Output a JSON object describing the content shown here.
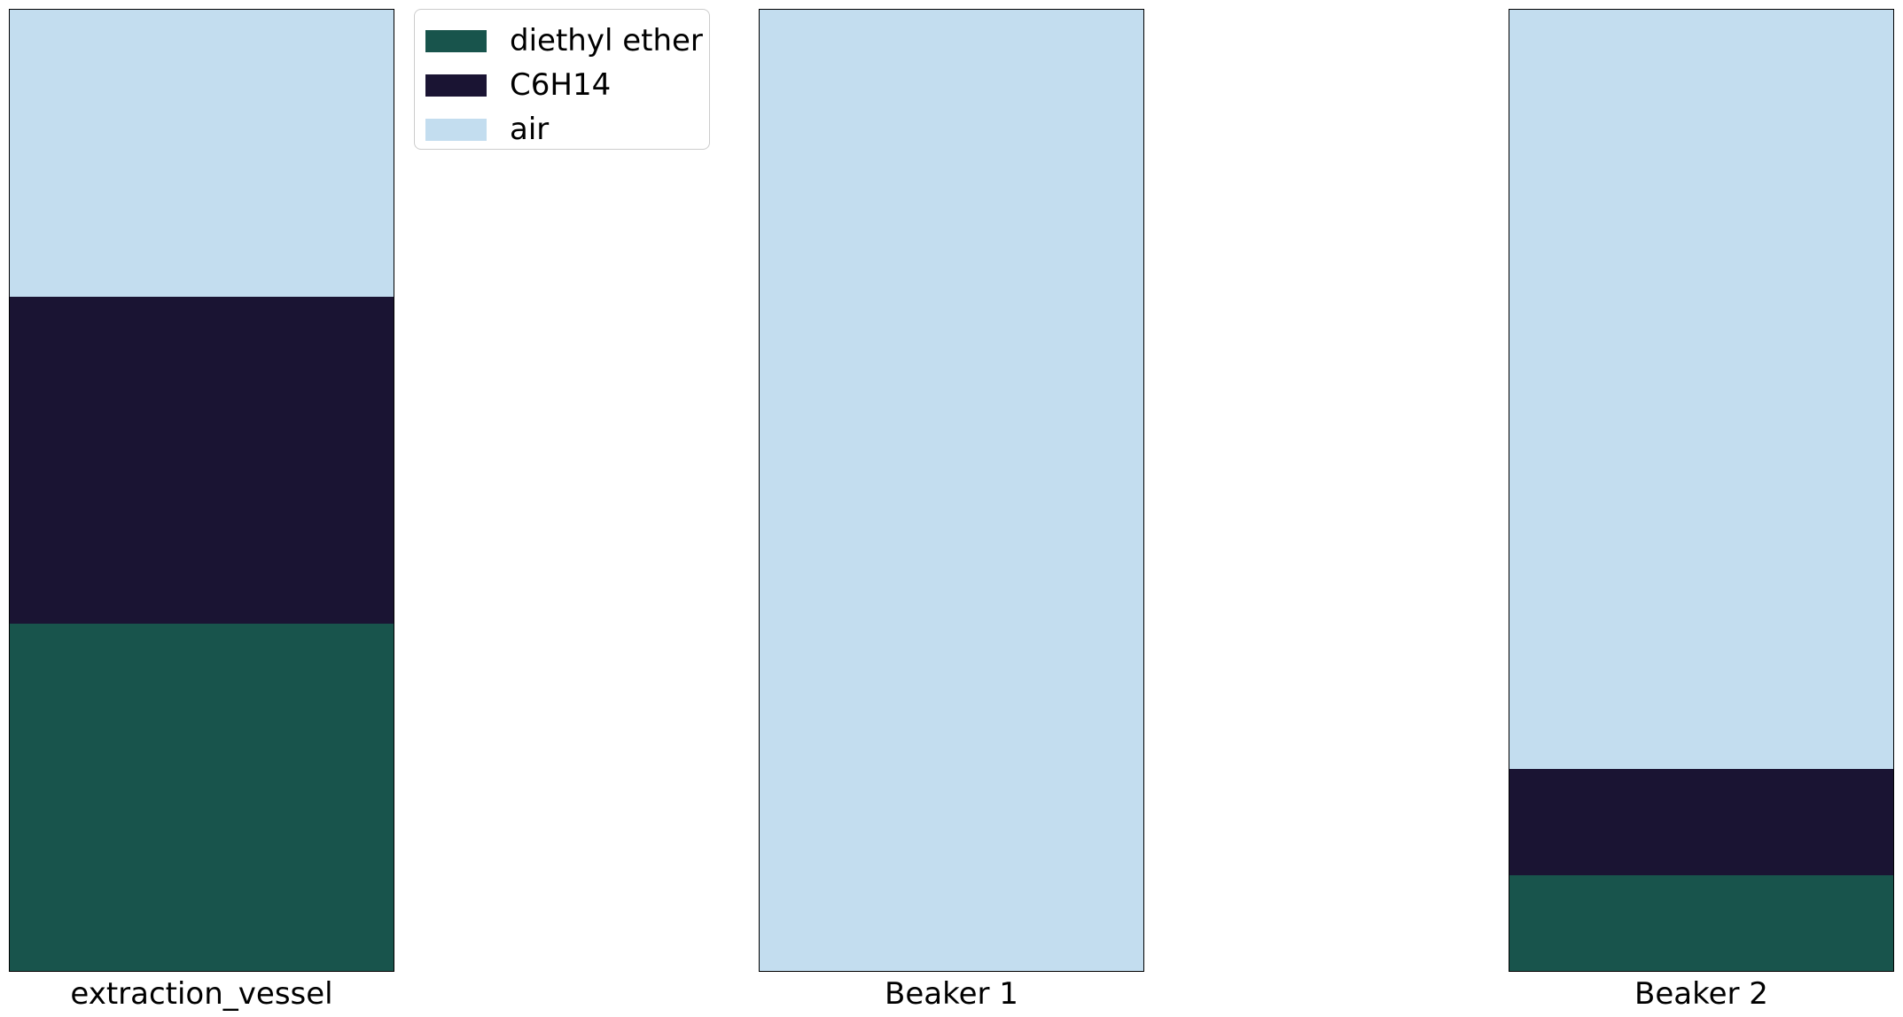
{
  "legend": {
    "items": [
      {
        "label": "diethyl ether",
        "color": "#18544c"
      },
      {
        "label": "C6H14",
        "color": "#1a1433"
      },
      {
        "label": "air",
        "color": "#c3ddef"
      }
    ]
  },
  "vessels": [
    {
      "label": "extraction_vessel",
      "layers": [
        {
          "substance": "diethyl ether",
          "fraction": 0.361
        },
        {
          "substance": "C6H14",
          "fraction": 0.34
        },
        {
          "substance": "air",
          "fraction": 0.299
        }
      ]
    },
    {
      "label": "Beaker 1",
      "layers": [
        {
          "substance": "air",
          "fraction": 1.0
        }
      ]
    },
    {
      "label": "Beaker 2",
      "layers": [
        {
          "substance": "diethyl ether",
          "fraction": 0.1
        },
        {
          "substance": "C6H14",
          "fraction": 0.11
        },
        {
          "substance": "air",
          "fraction": 0.79
        }
      ]
    }
  ]
}
